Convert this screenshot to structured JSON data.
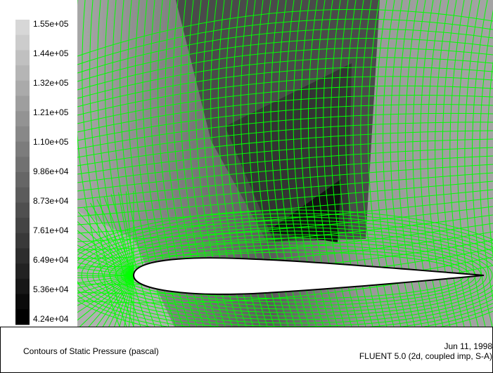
{
  "colorbar": {
    "labels": [
      "1.55e+05",
      "1.44e+05",
      "1.32e+05",
      "1.21e+05",
      "1.10e+05",
      "9.86e+04",
      "8.73e+04",
      "7.61e+04",
      "6.49e+04",
      "5.36e+04",
      "4.24e+04"
    ]
  },
  "caption": {
    "title": "Contours of Static Pressure (pascal)",
    "date": "Jun 11, 1998",
    "solver": "FLUENT 5.0 (2d, coupled imp, S-A)"
  }
}
